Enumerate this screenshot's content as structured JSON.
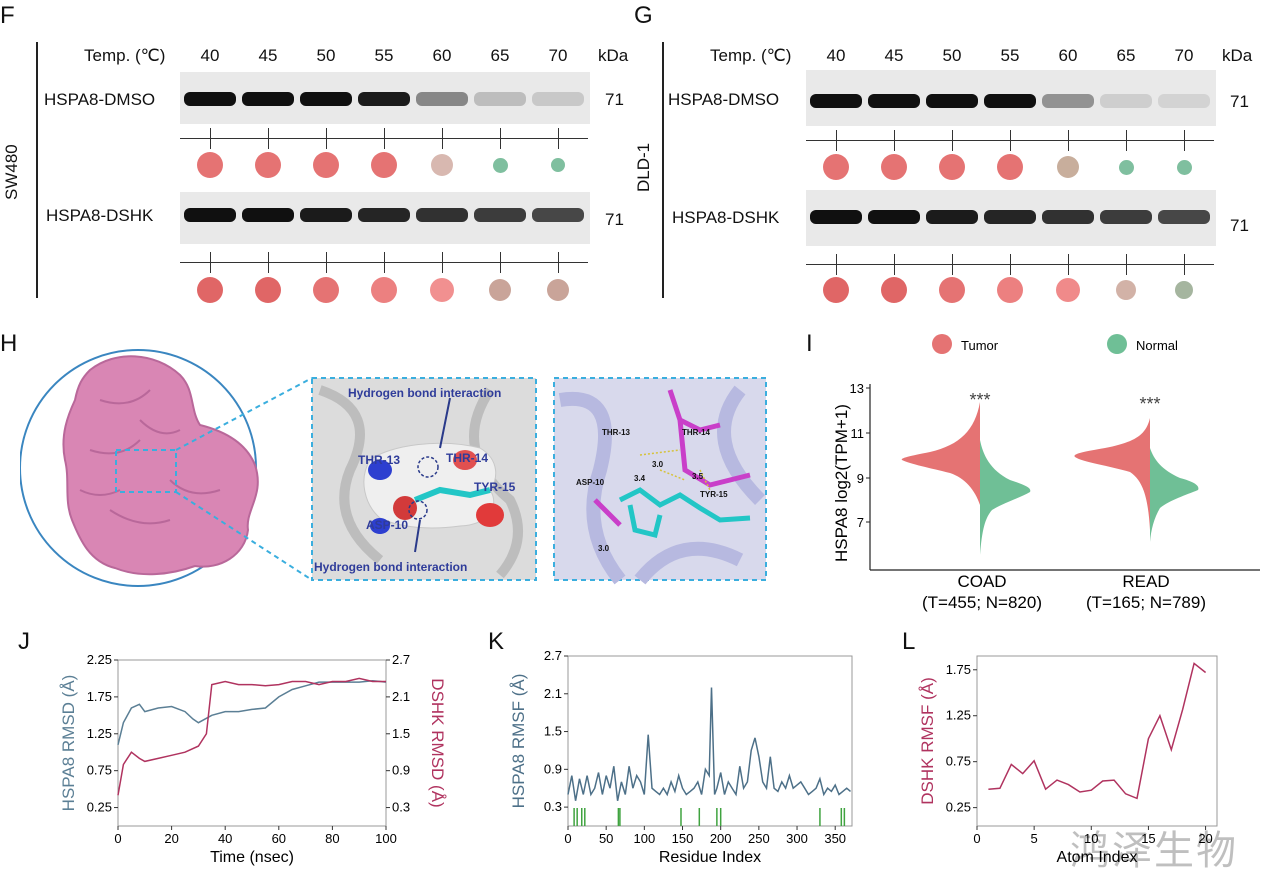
{
  "panels": {
    "F": {
      "letter": "F",
      "cell_line": "SW480",
      "temp_label": "Temp. (℃)",
      "temps": [
        "40",
        "45",
        "50",
        "55",
        "60",
        "65",
        "70"
      ],
      "kda_label": "kDa",
      "rows": [
        {
          "label": "HSPA8-DMSO",
          "kda": "71",
          "band_intensity": [
            1.0,
            1.0,
            1.0,
            0.95,
            0.45,
            0.2,
            0.15
          ],
          "dots": [
            {
              "size": 26,
              "color": "#e57373"
            },
            {
              "size": 26,
              "color": "#e57373"
            },
            {
              "size": 26,
              "color": "#e57373"
            },
            {
              "size": 26,
              "color": "#e57373"
            },
            {
              "size": 22,
              "color": "#d8b8b0"
            },
            {
              "size": 15,
              "color": "#7fbf9f"
            },
            {
              "size": 14,
              "color": "#7fbf9f"
            }
          ]
        },
        {
          "label": "HSPA8-DSHK",
          "kda": "71",
          "band_intensity": [
            1.0,
            1.0,
            0.95,
            0.9,
            0.85,
            0.8,
            0.75
          ],
          "dots": [
            {
              "size": 26,
              "color": "#e06666"
            },
            {
              "size": 26,
              "color": "#e06666"
            },
            {
              "size": 26,
              "color": "#e57373"
            },
            {
              "size": 26,
              "color": "#ec8080"
            },
            {
              "size": 24,
              "color": "#f19090"
            },
            {
              "size": 22,
              "color": "#c9a499"
            },
            {
              "size": 22,
              "color": "#c9a499"
            }
          ]
        }
      ]
    },
    "G": {
      "letter": "G",
      "cell_line": "DLD-1",
      "temp_label": "Temp. (℃)",
      "temps": [
        "40",
        "45",
        "50",
        "55",
        "60",
        "65",
        "70"
      ],
      "kda_label": "kDa",
      "rows": [
        {
          "label": "HSPA8-DMSO",
          "kda": "71",
          "band_intensity": [
            1.0,
            1.0,
            1.0,
            1.0,
            0.4,
            0.12,
            0.1
          ],
          "dots": [
            {
              "size": 26,
              "color": "#e57373"
            },
            {
              "size": 26,
              "color": "#e57373"
            },
            {
              "size": 26,
              "color": "#e57373"
            },
            {
              "size": 26,
              "color": "#e57373"
            },
            {
              "size": 22,
              "color": "#c8ae9c"
            },
            {
              "size": 15,
              "color": "#7fbf9f"
            },
            {
              "size": 15,
              "color": "#7fbf9f"
            }
          ]
        },
        {
          "label": "HSPA8-DSHK",
          "kda": "71",
          "band_intensity": [
            1.0,
            1.0,
            0.95,
            0.9,
            0.85,
            0.8,
            0.75
          ],
          "dots": [
            {
              "size": 26,
              "color": "#e06666"
            },
            {
              "size": 26,
              "color": "#e06666"
            },
            {
              "size": 26,
              "color": "#e57373"
            },
            {
              "size": 26,
              "color": "#ec8080"
            },
            {
              "size": 24,
              "color": "#f08a8a"
            },
            {
              "size": 20,
              "color": "#d2b2a7"
            },
            {
              "size": 18,
              "color": "#a5b59f"
            }
          ]
        }
      ]
    },
    "H": {
      "letter": "H",
      "middle_labels": {
        "hbond_top": "Hydrogen bond interaction",
        "hbond_bottom": "Hydrogen bond interaction",
        "thr13": "THR-13",
        "thr14": "THR-14",
        "tyr15": "TYR-15",
        "asp10": "ASP-10"
      },
      "right_labels": {
        "thr13": "THR-13",
        "thr14": "THR-14",
        "asp10": "ASP-10",
        "tyr15": "TYR-15",
        "d1": "3.0",
        "d2": "3.4",
        "d3": "3.5",
        "d4": "3.0"
      }
    },
    "I": {
      "letter": "I",
      "legend": [
        {
          "name": "Tumor",
          "color": "#e57373"
        },
        {
          "name": "Normal",
          "color": "#6fbf96"
        }
      ],
      "ylabel": "HSPA8  log2(TPM+1)",
      "yticks": [
        "13",
        "11",
        "9",
        "7"
      ],
      "groups": [
        {
          "name": "COAD",
          "n": "(T=455; N=820)",
          "sig": "***"
        },
        {
          "name": "READ",
          "n": "(T=165; N=789)",
          "sig": "***"
        }
      ]
    },
    "J": {
      "letter": "J"
    },
    "K": {
      "letter": "K"
    },
    "L": {
      "letter": "L"
    }
  },
  "chart_data": [
    {
      "panel": "J",
      "type": "line",
      "xlabel": "Time (nsec)",
      "ylabel": "HSPA8 RMSD (Å)",
      "y2label": "DSHK RMSD (Å)",
      "xlim": [
        0,
        100
      ],
      "ylim": [
        0.0,
        2.25
      ],
      "y2lim": [
        0.0,
        2.7
      ],
      "xticks": [
        "0",
        "20",
        "40",
        "60",
        "80",
        "100"
      ],
      "yticks": [
        "0.25",
        "0.75",
        "1.25",
        "1.75",
        "2.25"
      ],
      "y2ticks": [
        "0.3",
        "0.9",
        "1.5",
        "2.1",
        "2.7"
      ],
      "series": [
        {
          "axis": "left",
          "color": "#5b7f95",
          "x": [
            0,
            2,
            5,
            8,
            10,
            15,
            20,
            25,
            28,
            30,
            35,
            40,
            45,
            50,
            55,
            60,
            65,
            70,
            75,
            80,
            85,
            90,
            95,
            100
          ],
          "y": [
            1.1,
            1.4,
            1.6,
            1.65,
            1.55,
            1.6,
            1.62,
            1.55,
            1.45,
            1.4,
            1.5,
            1.55,
            1.55,
            1.58,
            1.6,
            1.75,
            1.85,
            1.9,
            1.95,
            1.95,
            1.95,
            1.95,
            1.97,
            1.95
          ]
        },
        {
          "axis": "right",
          "color": "#b0335f",
          "x": [
            0,
            2,
            5,
            8,
            10,
            15,
            20,
            25,
            30,
            33,
            35,
            40,
            45,
            50,
            55,
            60,
            65,
            70,
            75,
            80,
            85,
            90,
            95,
            100
          ],
          "y": [
            0.5,
            1.0,
            1.2,
            1.1,
            1.05,
            1.1,
            1.15,
            1.2,
            1.3,
            1.5,
            2.3,
            2.35,
            2.3,
            2.3,
            2.28,
            2.3,
            2.35,
            2.35,
            2.3,
            2.35,
            2.35,
            2.4,
            2.35,
            2.35
          ]
        }
      ]
    },
    {
      "panel": "K",
      "type": "line",
      "xlabel": "Residue Index",
      "ylabel": "HSPA8 RMSF (Å)",
      "xlim": [
        0,
        372
      ],
      "ylim": [
        0,
        2.7
      ],
      "xticks": [
        "0",
        "50",
        "100",
        "150",
        "200",
        "250",
        "300",
        "350"
      ],
      "yticks": [
        "0.3",
        "0.9",
        "1.5",
        "2.1",
        "2.7"
      ],
      "series": [
        {
          "color": "#4d7088",
          "x": [
            0,
            5,
            10,
            15,
            20,
            25,
            30,
            35,
            40,
            45,
            50,
            55,
            60,
            65,
            70,
            75,
            80,
            85,
            90,
            95,
            100,
            105,
            110,
            115,
            120,
            125,
            130,
            135,
            140,
            145,
            150,
            155,
            160,
            165,
            170,
            175,
            180,
            185,
            188,
            192,
            195,
            200,
            205,
            210,
            215,
            220,
            225,
            230,
            235,
            240,
            245,
            250,
            255,
            260,
            265,
            270,
            275,
            280,
            285,
            290,
            295,
            300,
            305,
            310,
            315,
            320,
            325,
            330,
            335,
            340,
            345,
            350,
            355,
            360,
            365,
            370
          ],
          "y": [
            0.5,
            0.8,
            0.4,
            0.75,
            0.5,
            0.8,
            0.5,
            0.6,
            0.85,
            0.5,
            0.8,
            0.6,
            0.95,
            0.4,
            0.7,
            0.5,
            0.95,
            0.6,
            0.8,
            0.7,
            0.5,
            1.45,
            0.6,
            0.55,
            0.5,
            0.6,
            0.5,
            0.7,
            0.55,
            0.8,
            0.6,
            0.5,
            0.55,
            0.6,
            0.7,
            0.5,
            0.9,
            0.8,
            2.2,
            0.5,
            0.6,
            0.85,
            0.5,
            0.7,
            0.6,
            0.5,
            0.95,
            0.6,
            0.7,
            1.2,
            1.4,
            1.1,
            0.7,
            0.6,
            1.1,
            0.6,
            0.55,
            0.7,
            0.6,
            0.8,
            0.6,
            0.65,
            0.7,
            0.6,
            0.5,
            0.55,
            0.6,
            0.75,
            0.5,
            0.6,
            0.55,
            0.65,
            0.5,
            0.55,
            0.6,
            0.55
          ]
        }
      ]
    },
    {
      "panel": "L",
      "type": "line",
      "xlabel": "Atom Index",
      "ylabel": "DSHK RMSF (Å)",
      "xlim": [
        0,
        21
      ],
      "ylim": [
        0.05,
        1.9
      ],
      "xticks": [
        "0",
        "5",
        "10",
        "15",
        "20"
      ],
      "yticks": [
        "0.25",
        "0.75",
        "1.25",
        "1.75"
      ],
      "series": [
        {
          "color": "#b0335f",
          "x": [
            1,
            2,
            3,
            4,
            5,
            6,
            7,
            8,
            9,
            10,
            11,
            12,
            13,
            14,
            15,
            16,
            17,
            18,
            19,
            20
          ],
          "y": [
            0.45,
            0.46,
            0.72,
            0.62,
            0.76,
            0.45,
            0.55,
            0.5,
            0.42,
            0.44,
            0.54,
            0.55,
            0.4,
            0.35,
            1.0,
            1.25,
            0.88,
            1.32,
            1.82,
            1.72
          ]
        }
      ]
    }
  ],
  "watermark": "鸿泽生物"
}
